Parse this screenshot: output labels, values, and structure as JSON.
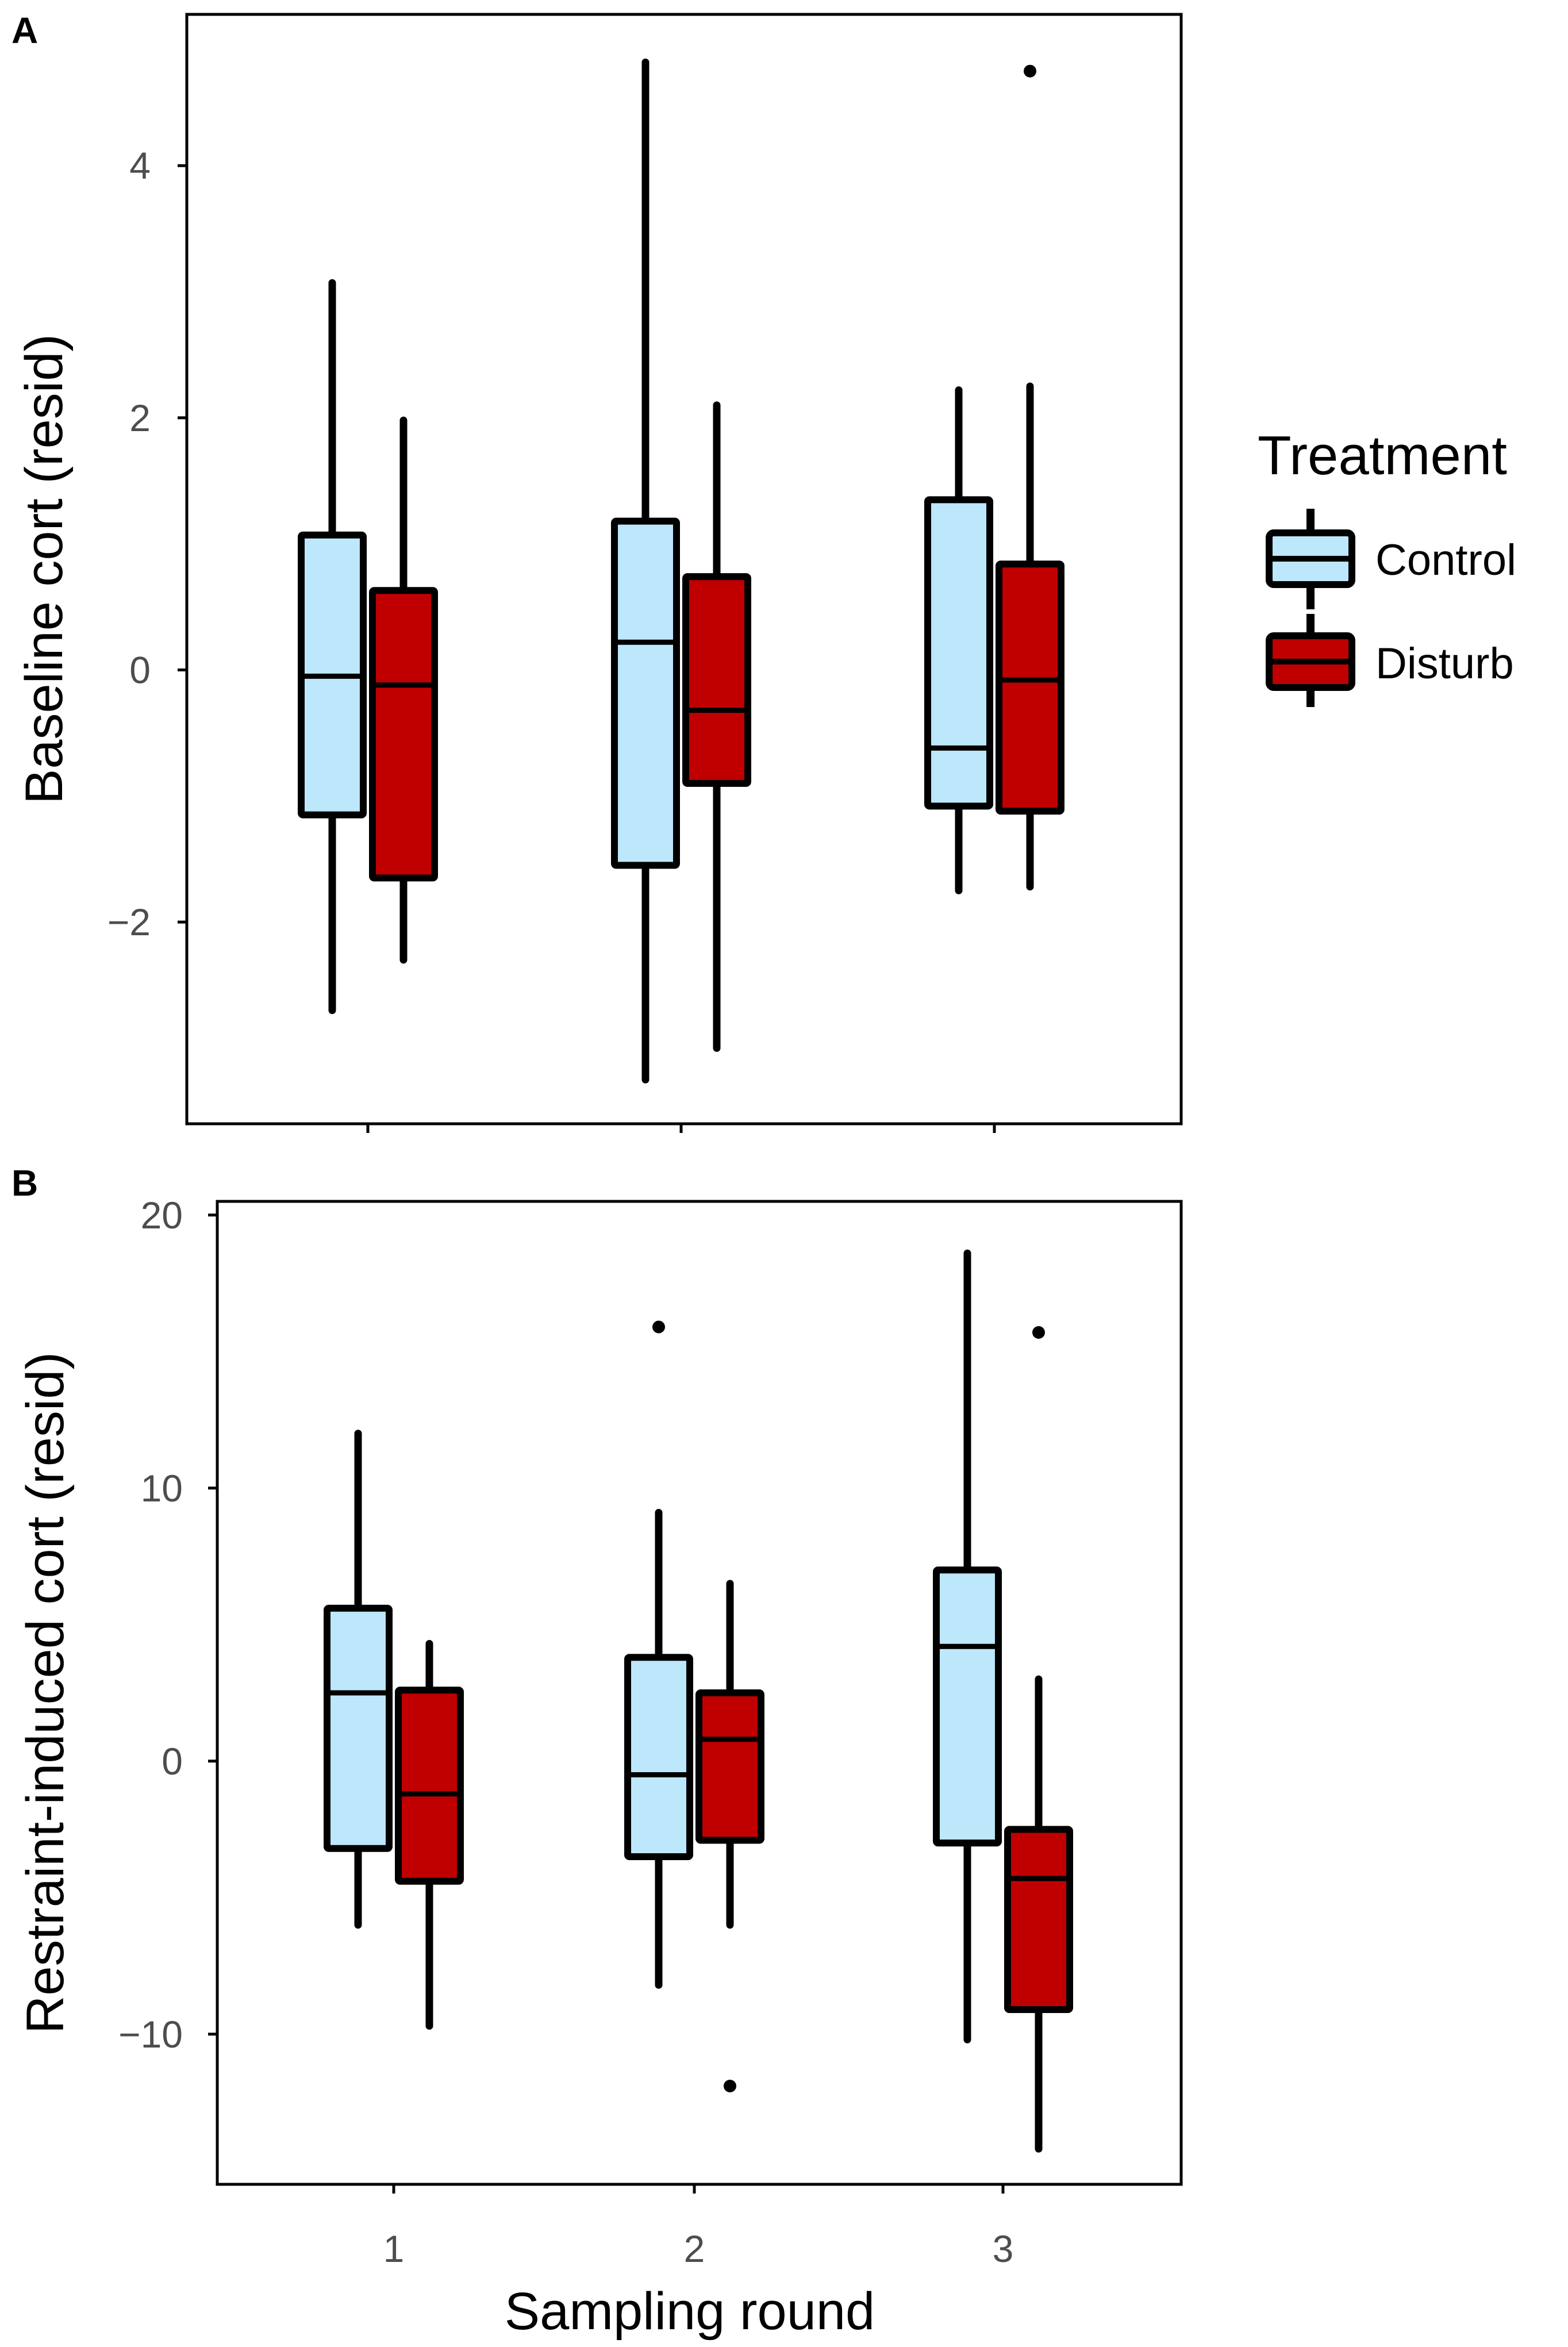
{
  "legend": {
    "title": "Treatment",
    "items": [
      {
        "label": "Control",
        "color": "#bde7fb"
      },
      {
        "label": "Disturb",
        "color": "#c00000"
      }
    ]
  },
  "chart_data": [
    {
      "type": "boxplot",
      "panel_label": "A",
      "ylabel": "Baseline cort (resid)",
      "xlabel": "",
      "ylim": [
        -3.6,
        5.2
      ],
      "yticks": [
        -2,
        0,
        2,
        4
      ],
      "ytick_labels": [
        "−2",
        "0",
        "2",
        "4"
      ],
      "categories": [
        "1",
        "2",
        "3"
      ],
      "show_x_tick_labels": false,
      "series": [
        {
          "name": "Control",
          "color": "#bde7fb",
          "boxes": [
            {
              "q1": -1.15,
              "median": -0.05,
              "q3": 1.07,
              "whisker_low": -2.7,
              "whisker_high": 3.07,
              "outliers": []
            },
            {
              "q1": -1.55,
              "median": 0.22,
              "q3": 1.18,
              "whisker_low": -3.25,
              "whisker_high": 4.82,
              "outliers": []
            },
            {
              "q1": -1.08,
              "median": -0.62,
              "q3": 1.35,
              "whisker_low": -1.75,
              "whisker_high": 2.22,
              "outliers": []
            }
          ]
        },
        {
          "name": "Disturb",
          "color": "#c00000",
          "boxes": [
            {
              "q1": -1.65,
              "median": -0.12,
              "q3": 0.63,
              "whisker_low": -2.3,
              "whisker_high": 1.98,
              "outliers": []
            },
            {
              "q1": -0.9,
              "median": -0.32,
              "q3": 0.74,
              "whisker_low": -3.0,
              "whisker_high": 2.1,
              "outliers": []
            },
            {
              "q1": -1.12,
              "median": -0.08,
              "q3": 0.84,
              "whisker_low": -1.72,
              "whisker_high": 2.25,
              "outliers": [
                4.75
              ]
            }
          ]
        }
      ]
    },
    {
      "type": "boxplot",
      "panel_label": "B",
      "ylabel": "Restraint-induced cort (resid)",
      "xlabel": "Sampling round",
      "ylim": [
        -15.5,
        20.5
      ],
      "yticks": [
        -10,
        0,
        10,
        20
      ],
      "ytick_labels": [
        "−10",
        "0",
        "10",
        "20"
      ],
      "categories": [
        "1",
        "2",
        "3"
      ],
      "show_x_tick_labels": true,
      "series": [
        {
          "name": "Control",
          "color": "#bde7fb",
          "boxes": [
            {
              "q1": -3.2,
              "median": 2.5,
              "q3": 5.6,
              "whisker_low": -6.0,
              "whisker_high": 12.0,
              "outliers": []
            },
            {
              "q1": -3.5,
              "median": -0.5,
              "q3": 3.8,
              "whisker_low": -8.2,
              "whisker_high": 9.1,
              "outliers": [
                15.9
              ]
            },
            {
              "q1": -3.0,
              "median": 4.2,
              "q3": 7.0,
              "whisker_low": -10.2,
              "whisker_high": 18.6,
              "outliers": []
            }
          ]
        },
        {
          "name": "Disturb",
          "color": "#c00000",
          "boxes": [
            {
              "q1": -4.4,
              "median": -1.2,
              "q3": 2.6,
              "whisker_low": -9.7,
              "whisker_high": 4.3,
              "outliers": []
            },
            {
              "q1": -2.9,
              "median": 0.8,
              "q3": 2.5,
              "whisker_low": -6.0,
              "whisker_high": 6.5,
              "outliers": [
                -11.9
              ]
            },
            {
              "q1": -9.1,
              "median": -4.3,
              "q3": -2.5,
              "whisker_low": -14.2,
              "whisker_high": 3.0,
              "outliers": [
                15.7
              ]
            }
          ]
        }
      ]
    }
  ]
}
